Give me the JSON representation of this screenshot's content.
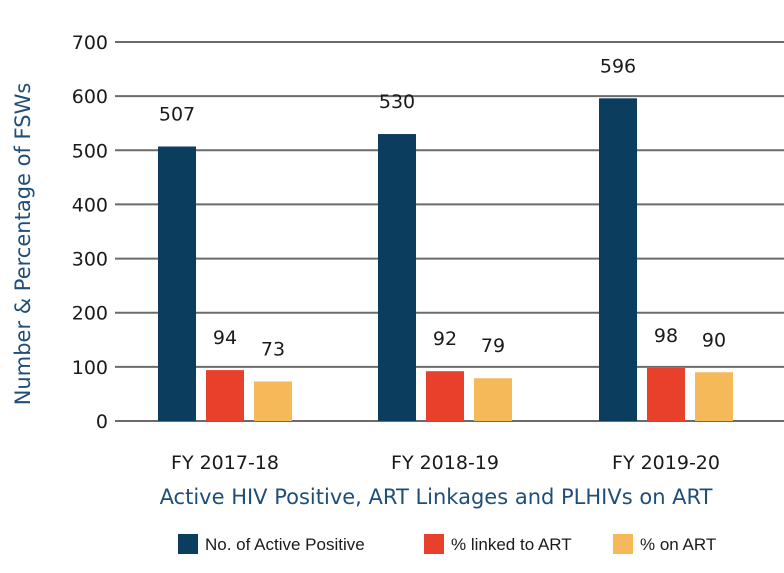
{
  "colors": {
    "series1": "#0b3d5e",
    "series2": "#e8402a",
    "series3": "#f5b95a",
    "grid": "#6b6b6b",
    "axis_title": "#1f4e79"
  },
  "chart_data": {
    "type": "bar",
    "title": "",
    "xlabel": "Active HIV Positive, ART Linkages and PLHIVs on ART",
    "ylabel": "Number & Percentage of FSWs",
    "ylim": [
      0,
      700
    ],
    "yticks": [
      0,
      100,
      200,
      300,
      400,
      500,
      600,
      700
    ],
    "categories": [
      "FY 2017-18",
      "FY 2018-19",
      "FY 2019-20"
    ],
    "series": [
      {
        "name": "No. of Active Positive",
        "values": [
          507,
          530,
          596
        ]
      },
      {
        "name": "% linked to ART",
        "values": [
          94,
          92,
          98
        ]
      },
      {
        "name": "% on ART",
        "values": [
          73,
          79,
          90
        ]
      }
    ],
    "grid": true,
    "legend_position": "bottom"
  }
}
